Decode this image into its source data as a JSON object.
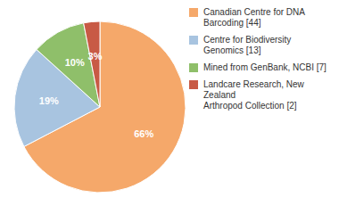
{
  "chart_data": {
    "type": "pie",
    "categories": [
      "Canadian Centre for DNA\nBarcoding [44]",
      "Centre for Biodiversity\nGenomics [13]",
      "Mined from GenBank, NCBI [7]",
      "Landcare Research, New Zealand\nArthropod Collection [2]"
    ],
    "values": [
      66,
      19,
      10,
      3
    ],
    "value_labels": [
      "66%",
      "19%",
      "10%",
      "3%"
    ],
    "data_labels": true,
    "colors": [
      "#F5A86A",
      "#A8C4E0",
      "#8FBF6A",
      "#C85A45"
    ],
    "legend": "right"
  }
}
